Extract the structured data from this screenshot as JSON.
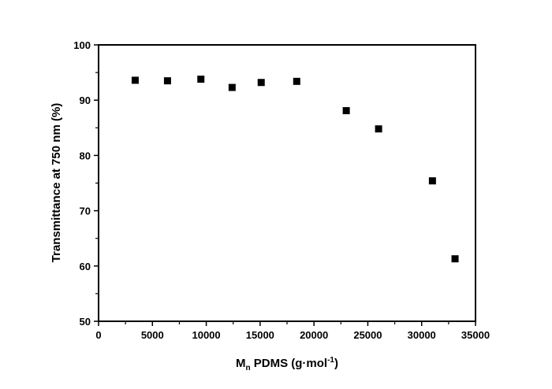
{
  "chart_data": {
    "type": "scatter",
    "xlabel": {
      "main": "M",
      "sub": "n",
      "rest": " PDMS (g·mol",
      "sup": "-1",
      "end": ")"
    },
    "ylabel": "Transmittance at 750 nm (%)",
    "xlim": [
      0,
      35000
    ],
    "ylim": [
      50,
      100
    ],
    "xticks": [
      "0",
      "5000",
      "10000",
      "15000",
      "20000",
      "25000",
      "30000",
      "35000"
    ],
    "yticks": [
      "50",
      "60",
      "70",
      "80",
      "90",
      "100"
    ],
    "grid": false,
    "marker": "square",
    "color": "#000000",
    "series": [
      {
        "x": [
          3400,
          6400,
          9500,
          12400,
          15100,
          18400,
          23000,
          26000,
          31000,
          33100
        ],
        "y": [
          93.6,
          93.5,
          93.8,
          92.3,
          93.2,
          93.4,
          88.1,
          84.8,
          75.4,
          61.3
        ]
      }
    ]
  }
}
